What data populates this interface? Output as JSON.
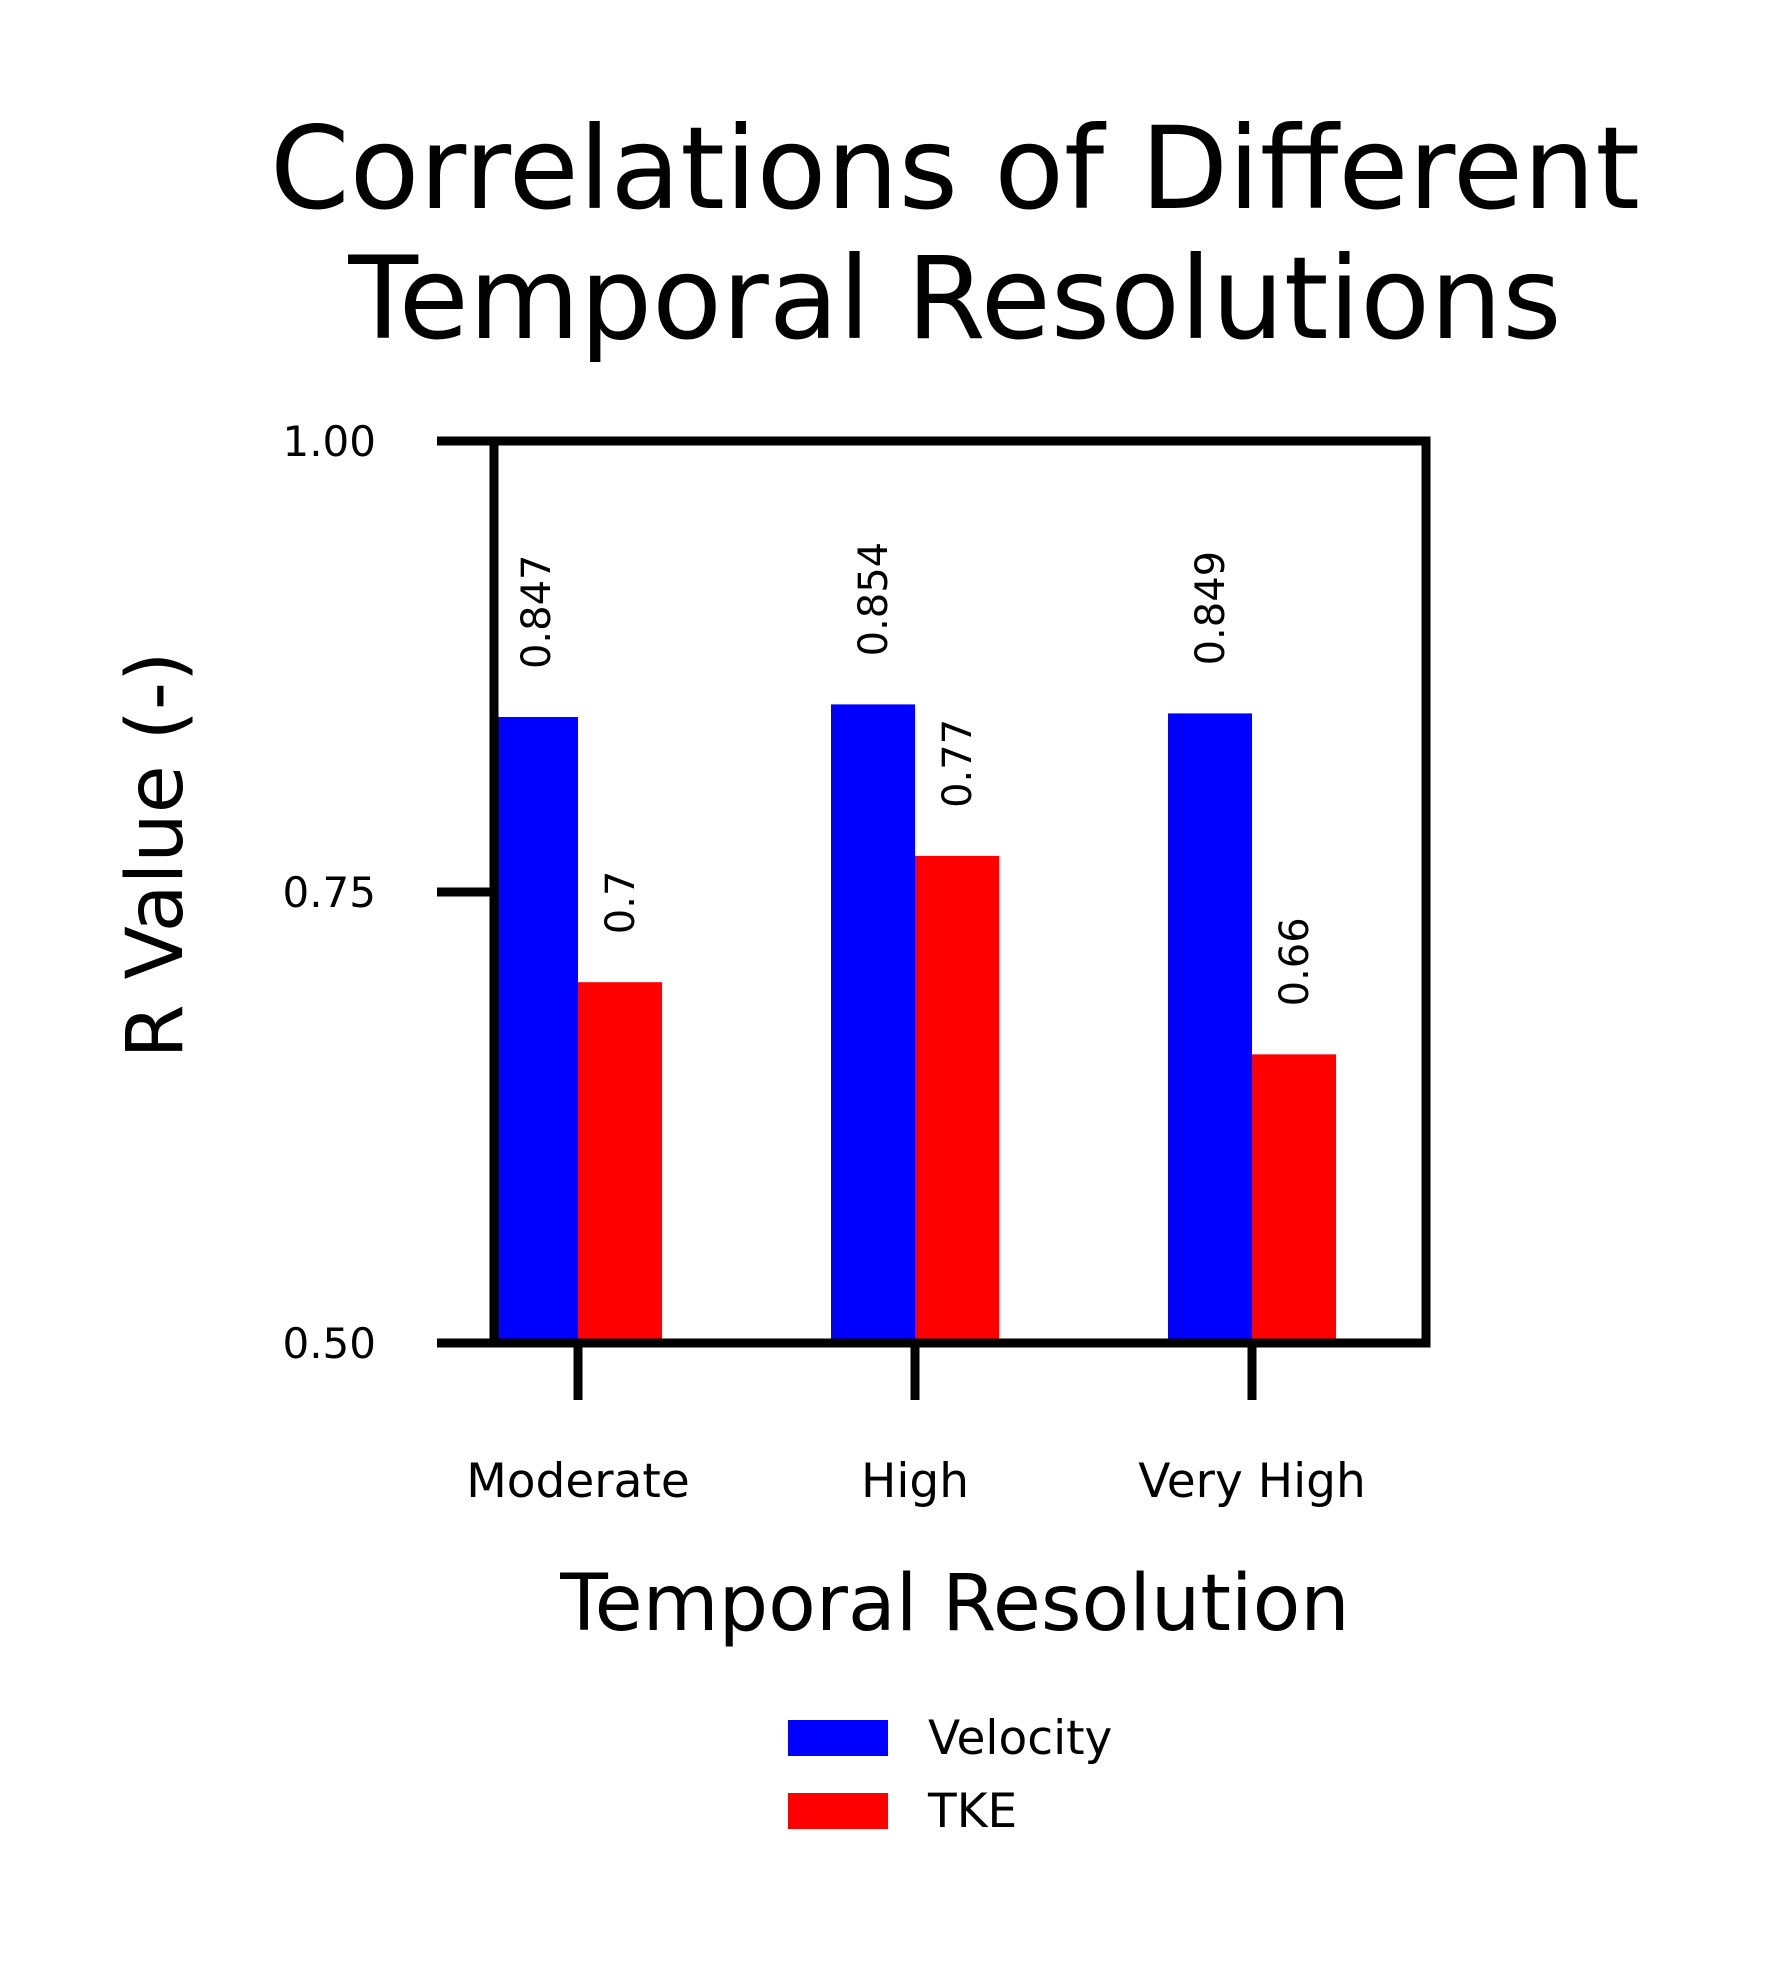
{
  "chart_data": {
    "type": "bar",
    "title_lines": [
      "Correlations of Different",
      "Temporal Resolutions"
    ],
    "xlabel": "Temporal Resolution",
    "ylabel": "R Value (-)",
    "ylim": [
      0.5,
      1.0
    ],
    "yticks": [
      0.5,
      0.75,
      1.0
    ],
    "ytick_labels": [
      "0.50",
      "0.75",
      "1.00"
    ],
    "categories": [
      "Moderate",
      "High",
      "Very High"
    ],
    "series": [
      {
        "name": "Velocity",
        "color": "#0000ff",
        "values": [
          0.847,
          0.854,
          0.849
        ],
        "value_labels": [
          "0.847",
          "0.854",
          "0.849"
        ]
      },
      {
        "name": "TKE",
        "color": "#ff0000",
        "values": [
          0.7,
          0.77,
          0.66
        ],
        "value_labels": [
          "0.7",
          "0.77",
          "0.66"
        ]
      }
    ],
    "legend_position": "bottom-center",
    "grid": false
  }
}
